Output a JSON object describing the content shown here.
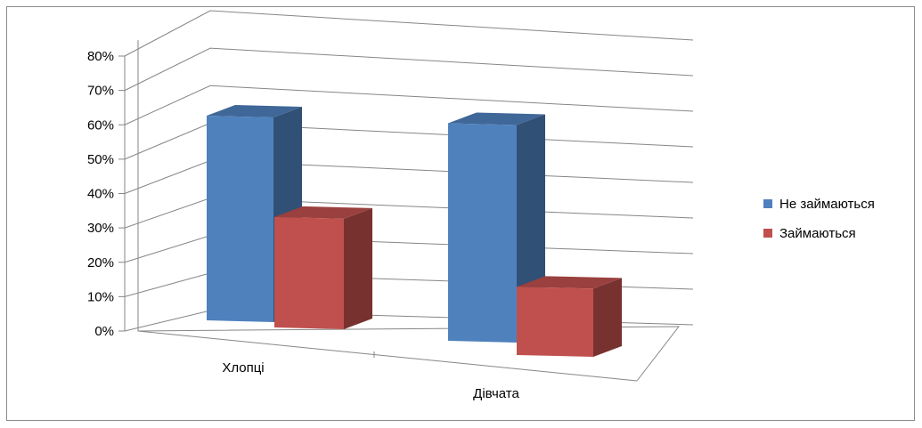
{
  "chart_data": {
    "type": "bar",
    "title": "",
    "xlabel": "",
    "ylabel": "",
    "categories": [
      "Хлопці",
      "Дівчата"
    ],
    "series": [
      {
        "name": "Не займаються",
        "values": [
          63,
          67
        ],
        "color": "#4f81bd"
      },
      {
        "name": "Займаються",
        "values": [
          34,
          21
        ],
        "color": "#c0504d"
      }
    ],
    "ylim": [
      0,
      80
    ],
    "yticks": [
      0,
      10,
      20,
      30,
      40,
      50,
      60,
      70,
      80
    ],
    "ytick_format": "%",
    "grid": true,
    "legend_position": "right",
    "style": "3d"
  }
}
